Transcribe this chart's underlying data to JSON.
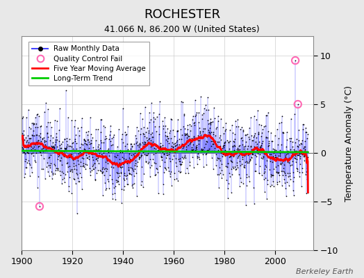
{
  "title": "ROCHESTER",
  "subtitle": "41.066 N, 86.200 W (United States)",
  "ylabel": "Temperature Anomaly (°C)",
  "credit": "Berkeley Earth",
  "xlim": [
    1900,
    2015
  ],
  "ylim": [
    -10,
    12
  ],
  "yticks": [
    -10,
    -5,
    0,
    5,
    10
  ],
  "xticks": [
    1900,
    1920,
    1940,
    1960,
    1980,
    2000
  ],
  "seed": 42,
  "n_months": 1356,
  "start_year": 1900,
  "qc_fail_indices": [
    84,
    1296,
    1308
  ],
  "qc_fail_values": [
    -5.5,
    9.5,
    5.0
  ],
  "colors": {
    "raw_line": "#4444FF",
    "raw_dots": "#000000",
    "qc_fail": "#FF69B4",
    "moving_avg": "#FF0000",
    "trend": "#00CC00",
    "background": "#E8E8E8",
    "plot_bg": "#FFFFFF",
    "grid": "#CCCCCC"
  }
}
